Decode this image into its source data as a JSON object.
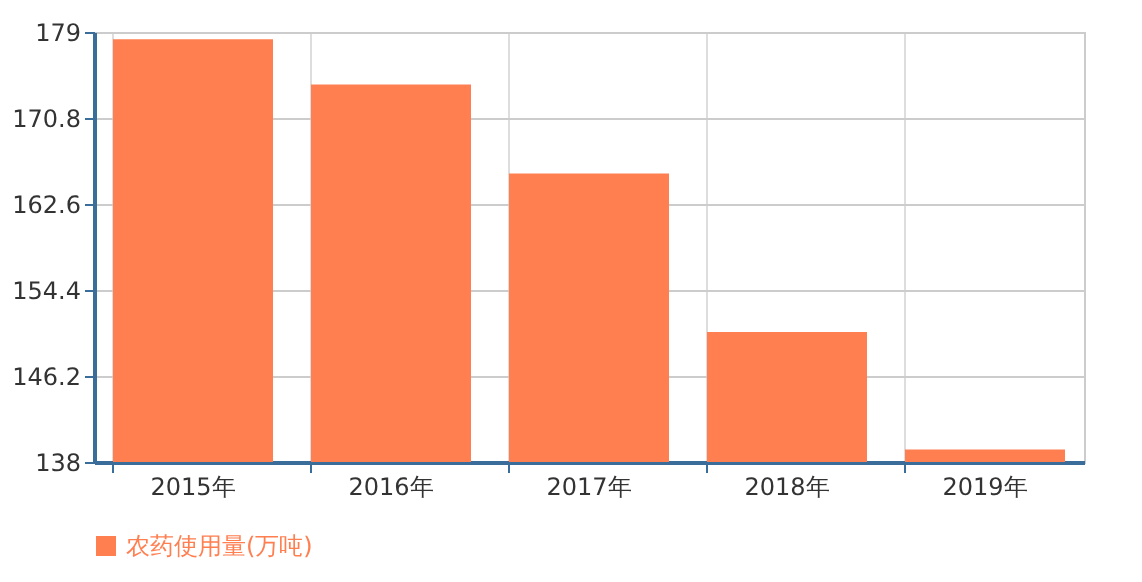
{
  "chart_data": {
    "type": "bar",
    "categories": [
      "2015年",
      "2016年",
      "2017年",
      "2018年",
      "2019年"
    ],
    "series": [
      {
        "name": "农药使用量(万吨)",
        "color": "#ff7f50",
        "values": [
          178.3,
          174.0,
          165.5,
          150.4,
          139.2
        ]
      }
    ],
    "ylim": [
      138,
      179
    ],
    "yticks": [
      138,
      146.2,
      154.4,
      162.6,
      170.8,
      179
    ],
    "grid": true,
    "legend": "bottom"
  }
}
